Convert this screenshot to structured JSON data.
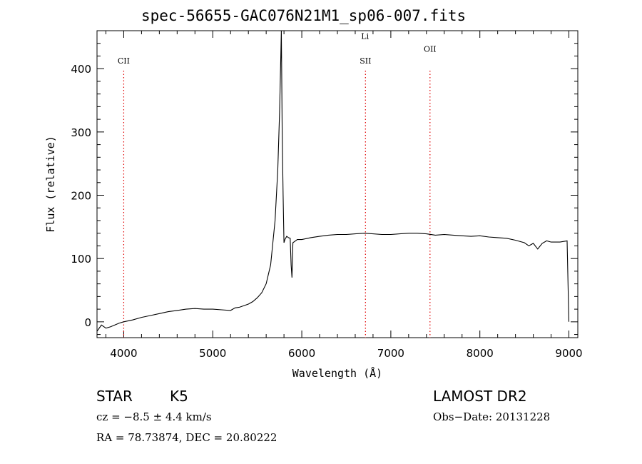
{
  "chart_data": {
    "type": "line",
    "title": "spec-56655-GAC076N21M1_sp06-007.fits",
    "xlabel": "Wavelength (Å)",
    "ylabel": "Flux (relative)",
    "xlim": [
      3700,
      9100
    ],
    "ylim": [
      -25,
      460
    ],
    "x_ticks": [
      4000,
      5000,
      6000,
      7000,
      8000,
      9000
    ],
    "y_ticks": [
      0,
      100,
      200,
      300,
      400
    ],
    "grid": false,
    "line_color": "#000000",
    "line_marker_color": "#e00000",
    "series": [
      {
        "x": [
          3700,
          3750,
          3800,
          3850,
          3900,
          3950,
          4000,
          4100,
          4200,
          4300,
          4400,
          4500,
          4600,
          4700,
          4800,
          4900,
          5000,
          5100,
          5200,
          5250,
          5300,
          5400,
          5450,
          5500,
          5550,
          5600,
          5650,
          5700,
          5730,
          5750,
          5760,
          5770,
          5780,
          5790,
          5800,
          5810,
          5830,
          5850,
          5870,
          5880,
          5890,
          5900,
          5950,
          6000,
          6100,
          6200,
          6300,
          6400,
          6500,
          6600,
          6700,
          6800,
          6900,
          7000,
          7100,
          7200,
          7300,
          7400,
          7500,
          7600,
          7700,
          7800,
          7900,
          8000,
          8100,
          8200,
          8300,
          8400,
          8500,
          8550,
          8600,
          8650,
          8700,
          8750,
          8800,
          8900,
          8980,
          8990,
          9000
        ],
        "y": [
          -15,
          -5,
          -10,
          -8,
          -5,
          -2,
          0,
          3,
          7,
          10,
          13,
          16,
          18,
          20,
          21,
          20,
          20,
          19,
          18,
          22,
          23,
          28,
          32,
          38,
          46,
          60,
          90,
          160,
          240,
          330,
          390,
          460,
          300,
          200,
          125,
          130,
          135,
          133,
          132,
          90,
          70,
          125,
          130,
          130,
          133,
          135,
          137,
          138,
          138,
          139,
          140,
          139,
          138,
          138,
          139,
          140,
          140,
          139,
          137,
          138,
          137,
          136,
          135,
          136,
          134,
          133,
          132,
          129,
          125,
          120,
          124,
          115,
          124,
          128,
          126,
          126,
          128,
          60,
          0
        ]
      }
    ],
    "line_ids": [
      {
        "label": "CII",
        "x": 4000,
        "y": 408
      },
      {
        "label": "Li",
        "x": 6710,
        "y": 447
      },
      {
        "label": "SII",
        "x": 6715,
        "y": 408
      },
      {
        "label": "OII",
        "x": 7440,
        "y": 427
      }
    ]
  },
  "info": {
    "class": "STAR",
    "subclass": "K5",
    "survey": "LAMOST DR2",
    "cz": "cz = −8.5 ± 4.4 km/s",
    "obs_date": "Obs−Date: 20131228",
    "radec": "RA =  78.73874, DEC =  20.80222"
  }
}
